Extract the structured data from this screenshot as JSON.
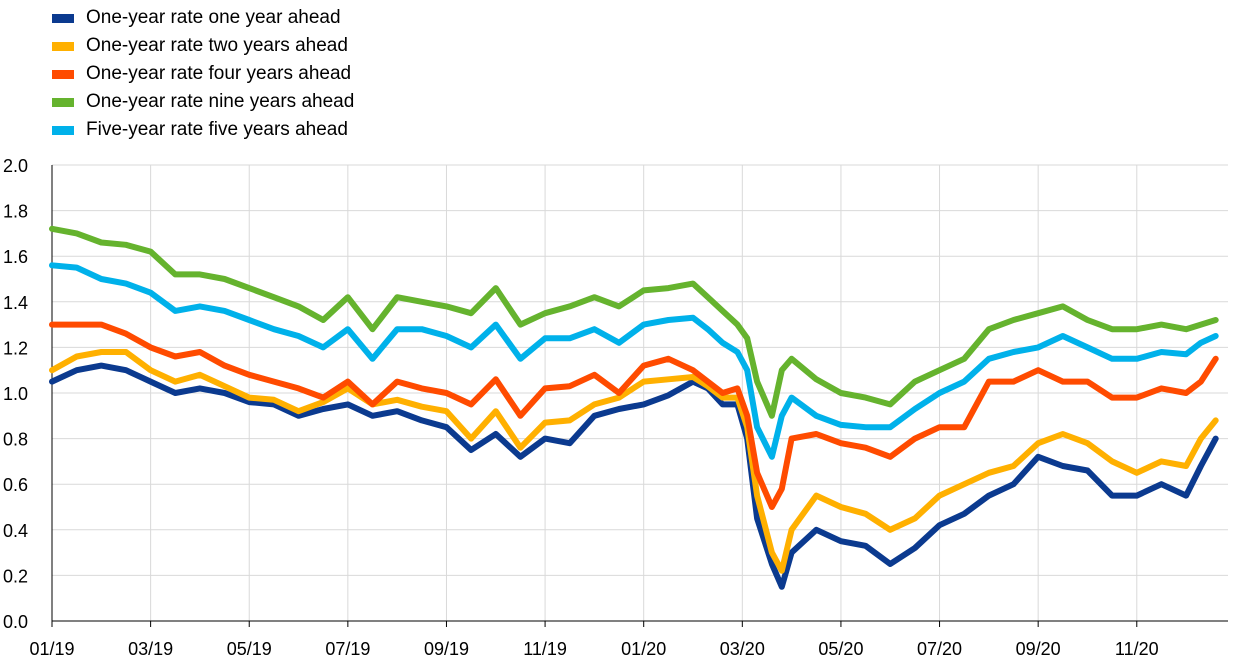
{
  "chart_data": {
    "type": "line",
    "title": "",
    "xlabel": "",
    "ylabel": "",
    "ylim": [
      0.0,
      2.0
    ],
    "y_ticks": [
      "0.0",
      "0.2",
      "0.4",
      "0.6",
      "0.8",
      "1.0",
      "1.2",
      "1.4",
      "1.6",
      "1.8",
      "2.0"
    ],
    "x_ticks": [
      "01/19",
      "03/19",
      "05/19",
      "07/19",
      "09/19",
      "11/19",
      "01/20",
      "03/20",
      "05/20",
      "07/20",
      "09/20",
      "11/20"
    ],
    "grid": true,
    "legend_position": "top-left",
    "x_months": [
      0,
      0.5,
      1,
      1.5,
      2,
      2.5,
      3,
      3.5,
      4,
      4.5,
      5,
      5.5,
      6,
      6.5,
      7,
      7.5,
      8,
      8.5,
      9,
      9.5,
      10,
      10.5,
      11,
      11.5,
      12,
      12.5,
      13,
      13.3,
      13.6,
      13.9,
      14.1,
      14.3,
      14.6,
      14.8,
      15,
      15.5,
      16,
      16.5,
      17,
      17.5,
      18,
      18.5,
      19,
      19.5,
      20,
      20.5,
      21,
      21.5,
      22,
      22.5,
      23,
      23.3,
      23.6
    ],
    "series": [
      {
        "name": "One-year rate one year ahead",
        "color": "#0b3a8f",
        "values": [
          1.05,
          1.1,
          1.12,
          1.1,
          1.05,
          1.0,
          1.02,
          1.0,
          0.96,
          0.95,
          0.9,
          0.93,
          0.95,
          0.9,
          0.92,
          0.88,
          0.85,
          0.75,
          0.82,
          0.72,
          0.8,
          0.78,
          0.9,
          0.93,
          0.95,
          0.99,
          1.05,
          1.02,
          0.95,
          0.95,
          0.8,
          0.45,
          0.25,
          0.15,
          0.3,
          0.4,
          0.35,
          0.33,
          0.25,
          0.32,
          0.42,
          0.47,
          0.55,
          0.6,
          0.72,
          0.68,
          0.66,
          0.55,
          0.55,
          0.6,
          0.55,
          0.68,
          0.8
        ]
      },
      {
        "name": "One-year rate two years ahead",
        "color": "#ffb000",
        "values": [
          1.1,
          1.16,
          1.18,
          1.18,
          1.1,
          1.05,
          1.08,
          1.03,
          0.98,
          0.97,
          0.92,
          0.96,
          1.02,
          0.95,
          0.97,
          0.94,
          0.92,
          0.8,
          0.92,
          0.76,
          0.87,
          0.88,
          0.95,
          0.98,
          1.05,
          1.06,
          1.07,
          1.03,
          0.98,
          0.98,
          0.85,
          0.55,
          0.3,
          0.22,
          0.4,
          0.55,
          0.5,
          0.47,
          0.4,
          0.45,
          0.55,
          0.6,
          0.65,
          0.68,
          0.78,
          0.82,
          0.78,
          0.7,
          0.65,
          0.7,
          0.68,
          0.8,
          0.88
        ]
      },
      {
        "name": "One-year rate four years ahead",
        "color": "#ff4b00",
        "values": [
          1.3,
          1.3,
          1.3,
          1.26,
          1.2,
          1.16,
          1.18,
          1.12,
          1.08,
          1.05,
          1.02,
          0.98,
          1.05,
          0.95,
          1.05,
          1.02,
          1.0,
          0.95,
          1.06,
          0.9,
          1.02,
          1.03,
          1.08,
          1.0,
          1.12,
          1.15,
          1.1,
          1.05,
          1.0,
          1.02,
          0.9,
          0.65,
          0.5,
          0.58,
          0.8,
          0.82,
          0.78,
          0.76,
          0.72,
          0.8,
          0.85,
          0.85,
          1.05,
          1.05,
          1.1,
          1.05,
          1.05,
          0.98,
          0.98,
          1.02,
          1.0,
          1.05,
          1.15
        ]
      },
      {
        "name": "One-year rate nine years ahead",
        "color": "#65b32e",
        "values": [
          1.72,
          1.7,
          1.66,
          1.65,
          1.62,
          1.52,
          1.52,
          1.5,
          1.46,
          1.42,
          1.38,
          1.32,
          1.42,
          1.28,
          1.42,
          1.4,
          1.38,
          1.35,
          1.46,
          1.3,
          1.35,
          1.38,
          1.42,
          1.38,
          1.45,
          1.46,
          1.48,
          1.42,
          1.36,
          1.3,
          1.24,
          1.05,
          0.9,
          1.1,
          1.15,
          1.06,
          1.0,
          0.98,
          0.95,
          1.05,
          1.1,
          1.15,
          1.28,
          1.32,
          1.35,
          1.38,
          1.32,
          1.28,
          1.28,
          1.3,
          1.28,
          1.3,
          1.32
        ]
      },
      {
        "name": "Five-year rate five years ahead",
        "color": "#00b1ea",
        "values": [
          1.56,
          1.55,
          1.5,
          1.48,
          1.44,
          1.36,
          1.38,
          1.36,
          1.32,
          1.28,
          1.25,
          1.2,
          1.28,
          1.15,
          1.28,
          1.28,
          1.25,
          1.2,
          1.3,
          1.15,
          1.24,
          1.24,
          1.28,
          1.22,
          1.3,
          1.32,
          1.33,
          1.28,
          1.22,
          1.18,
          1.1,
          0.85,
          0.72,
          0.9,
          0.98,
          0.9,
          0.86,
          0.85,
          0.85,
          0.93,
          1.0,
          1.05,
          1.15,
          1.18,
          1.2,
          1.25,
          1.2,
          1.15,
          1.15,
          1.18,
          1.17,
          1.22,
          1.25
        ]
      }
    ]
  }
}
